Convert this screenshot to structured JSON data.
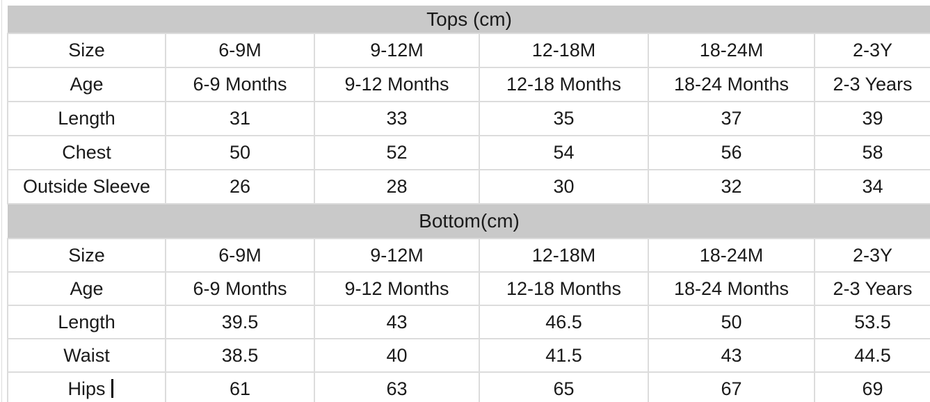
{
  "colors": {
    "section_header_bg": "#c9c9c9",
    "gridline": "#dcdcdc",
    "text": "#1a1a1a",
    "bottom_rule": "#000000"
  },
  "table": {
    "sections": [
      {
        "title": "Tops (cm)",
        "rows": [
          {
            "label": "Size",
            "values": [
              "6-9M",
              "9-12M",
              "12-18M",
              "18-24M",
              "2-3Y"
            ]
          },
          {
            "label": "Age",
            "values": [
              "6-9 Months",
              "9-12 Months",
              "12-18 Months",
              "18-24 Months",
              "2-3 Years"
            ]
          },
          {
            "label": "Length",
            "values": [
              "31",
              "33",
              "35",
              "37",
              "39"
            ]
          },
          {
            "label": "Chest",
            "values": [
              "50",
              "52",
              "54",
              "56",
              "58"
            ]
          },
          {
            "label": "Outside Sleeve",
            "values": [
              "26",
              "28",
              "30",
              "32",
              "34"
            ]
          }
        ]
      },
      {
        "title": "Bottom(cm)",
        "rows": [
          {
            "label": "Size",
            "values": [
              "6-9M",
              "9-12M",
              "12-18M",
              "18-24M",
              "2-3Y"
            ]
          },
          {
            "label": "Age",
            "values": [
              "6-9 Months",
              "9-12 Months",
              "12-18 Months",
              "18-24 Months",
              "2-3 Years"
            ]
          },
          {
            "label": "Length",
            "values": [
              "39.5",
              "43",
              "46.5",
              "50",
              "53.5"
            ]
          },
          {
            "label": "Waist",
            "values": [
              "38.5",
              "40",
              "41.5",
              "43",
              "44.5"
            ]
          },
          {
            "label": "Hips",
            "values": [
              "61",
              "63",
              "65",
              "67",
              "69"
            ]
          }
        ]
      }
    ]
  }
}
